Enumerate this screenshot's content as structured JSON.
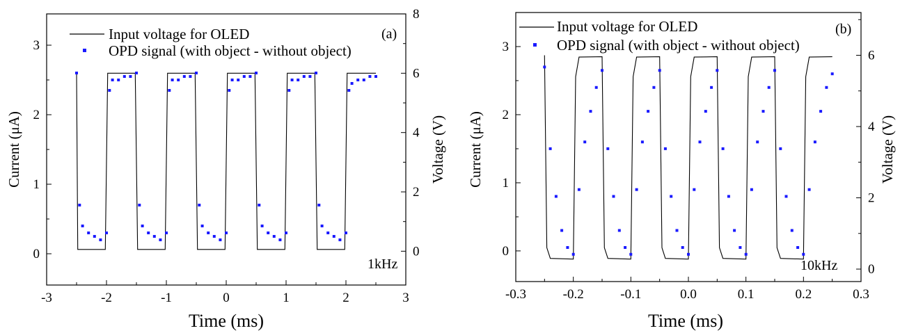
{
  "chart_data": [
    {
      "type": "scatter",
      "panel_label": "(a)",
      "frequency_label": "1kHz",
      "xlabel": "Time (ms)",
      "ylabel_left": "Current (μA)",
      "ylabel_right": "Voltage (V)",
      "xlim": [
        -3,
        3
      ],
      "ylim_left": [
        -0.45,
        3.45
      ],
      "ylim_right": [
        -1.14,
        8.0
      ],
      "x_ticks": [
        "-3",
        "-2",
        "-1",
        "0",
        "1",
        "2",
        "3"
      ],
      "y_ticks_left": [
        "0",
        "1",
        "2",
        "3"
      ],
      "y_ticks_right": [
        "0",
        "2",
        "4",
        "6",
        "8"
      ],
      "grid": false,
      "legend_position": "top",
      "series": [
        {
          "name": "Input voltage for OLED",
          "kind": "line",
          "color": "#000000",
          "axis": "right",
          "x": [
            -2.5,
            -2.48,
            -2.02,
            -1.98,
            -1.52,
            -1.48,
            -1.02,
            -0.98,
            -0.52,
            -0.48,
            -0.02,
            0.02,
            0.48,
            0.52,
            0.98,
            1.02,
            1.48,
            1.52,
            1.98,
            2.02,
            2.5
          ],
          "y": [
            6.0,
            0.06,
            0.06,
            6.0,
            6.0,
            0.06,
            0.06,
            6.0,
            6.0,
            0.06,
            0.06,
            6.0,
            6.0,
            0.06,
            0.06,
            6.0,
            6.0,
            0.06,
            0.06,
            6.0,
            6.0
          ]
        },
        {
          "name": "OPD signal (with object - without object)",
          "kind": "scatter",
          "color": "#1a1aff",
          "axis": "left",
          "x": [
            -2.5,
            -2.45,
            -2.4,
            -2.3,
            -2.2,
            -2.1,
            -2.0,
            -1.95,
            -1.9,
            -1.8,
            -1.7,
            -1.6,
            -1.5,
            -1.45,
            -1.4,
            -1.3,
            -1.2,
            -1.1,
            -1.0,
            -0.95,
            -0.9,
            -0.8,
            -0.7,
            -0.6,
            -0.5,
            -0.45,
            -0.4,
            -0.3,
            -0.2,
            -0.1,
            0.0,
            0.05,
            0.1,
            0.2,
            0.3,
            0.4,
            0.5,
            0.55,
            0.6,
            0.7,
            0.8,
            0.9,
            1.0,
            1.05,
            1.1,
            1.2,
            1.3,
            1.4,
            1.5,
            1.55,
            1.6,
            1.7,
            1.8,
            1.9,
            2.0,
            2.05,
            2.1,
            2.2,
            2.3,
            2.4,
            2.5
          ],
          "y": [
            2.6,
            0.7,
            0.4,
            0.3,
            0.25,
            0.2,
            0.3,
            2.35,
            2.5,
            2.5,
            2.55,
            2.55,
            2.6,
            0.7,
            0.4,
            0.3,
            0.25,
            0.2,
            0.3,
            2.35,
            2.5,
            2.5,
            2.55,
            2.55,
            2.6,
            0.7,
            0.4,
            0.3,
            0.25,
            0.2,
            0.3,
            2.35,
            2.5,
            2.5,
            2.55,
            2.55,
            2.6,
            0.7,
            0.4,
            0.3,
            0.25,
            0.2,
            0.3,
            2.35,
            2.5,
            2.5,
            2.55,
            2.55,
            2.6,
            0.7,
            0.4,
            0.3,
            0.25,
            0.2,
            0.3,
            2.35,
            2.45,
            2.5,
            2.5,
            2.55,
            2.55
          ]
        }
      ]
    },
    {
      "type": "scatter",
      "panel_label": "(b)",
      "frequency_label": "10kHz",
      "xlabel": "Time (ms)",
      "ylabel_left": "Current (μA)",
      "ylabel_right": "Voltage (V)",
      "xlim": [
        -0.3,
        0.3
      ],
      "ylim_left": [
        -0.45,
        3.5
      ],
      "ylim_right": [
        -0.35,
        7.2
      ],
      "x_ticks": [
        "-0.3",
        "-0.2",
        "-0.1",
        "0.0",
        "0.1",
        "0.2",
        "0.3"
      ],
      "y_ticks_left": [
        "0",
        "1",
        "2",
        "3"
      ],
      "y_ticks_right": [
        "0",
        "2",
        "4",
        "6"
      ],
      "grid": false,
      "legend_position": "top",
      "series": [
        {
          "name": "Input voltage for OLED",
          "kind": "line",
          "color": "#000000",
          "axis": "right",
          "x": [
            -0.25,
            -0.246,
            -0.24,
            -0.2,
            -0.2,
            -0.196,
            -0.19,
            -0.15,
            -0.15,
            -0.146,
            -0.14,
            -0.1,
            -0.1,
            -0.096,
            -0.09,
            -0.05,
            -0.05,
            -0.046,
            -0.04,
            0.0,
            0.0,
            0.004,
            0.01,
            0.05,
            0.05,
            0.054,
            0.06,
            0.1,
            0.1,
            0.104,
            0.11,
            0.15,
            0.15,
            0.154,
            0.16,
            0.2,
            0.2,
            0.204,
            0.21,
            0.25
          ],
          "y": [
            6.0,
            0.6,
            0.3,
            0.28,
            0.28,
            5.4,
            5.95,
            5.96,
            5.96,
            0.6,
            0.3,
            0.28,
            0.28,
            5.4,
            5.95,
            5.96,
            5.96,
            0.6,
            0.3,
            0.28,
            0.28,
            5.4,
            5.95,
            5.96,
            5.96,
            0.6,
            0.3,
            0.28,
            0.28,
            5.4,
            5.95,
            5.96,
            5.96,
            0.6,
            0.3,
            0.28,
            0.28,
            5.4,
            5.95,
            5.96
          ]
        },
        {
          "name": "OPD signal (with object - without object)",
          "kind": "scatter",
          "color": "#1a1aff",
          "axis": "left",
          "x": [
            -0.25,
            -0.24,
            -0.23,
            -0.22,
            -0.21,
            -0.2,
            -0.19,
            -0.18,
            -0.17,
            -0.16,
            -0.15,
            -0.14,
            -0.13,
            -0.12,
            -0.11,
            -0.1,
            -0.09,
            -0.08,
            -0.07,
            -0.06,
            -0.05,
            -0.04,
            -0.03,
            -0.02,
            -0.01,
            0.0,
            0.01,
            0.02,
            0.03,
            0.04,
            0.05,
            0.06,
            0.07,
            0.08,
            0.09,
            0.1,
            0.11,
            0.12,
            0.13,
            0.14,
            0.15,
            0.16,
            0.17,
            0.18,
            0.19,
            0.2,
            0.21,
            0.22,
            0.23,
            0.24,
            0.25
          ],
          "y": [
            2.7,
            1.5,
            0.8,
            0.3,
            0.05,
            -0.05,
            0.9,
            1.6,
            2.05,
            2.4,
            2.65,
            1.5,
            0.8,
            0.3,
            0.05,
            -0.05,
            0.9,
            1.6,
            2.05,
            2.4,
            2.65,
            1.5,
            0.8,
            0.3,
            0.05,
            -0.05,
            0.9,
            1.6,
            2.05,
            2.4,
            2.65,
            1.5,
            0.8,
            0.3,
            0.05,
            -0.05,
            0.9,
            1.6,
            2.05,
            2.4,
            2.65,
            1.5,
            0.8,
            0.3,
            0.05,
            -0.05,
            0.9,
            1.6,
            2.05,
            2.4,
            2.6
          ]
        }
      ]
    }
  ]
}
